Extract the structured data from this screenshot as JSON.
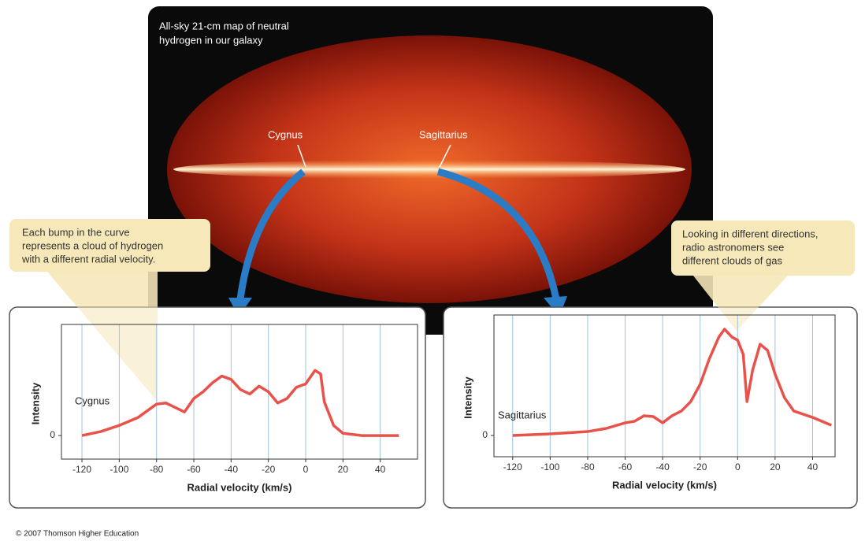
{
  "map": {
    "title_lines": [
      "All-sky 21-cm map of neutral",
      "hydrogen in our galaxy"
    ],
    "labels": [
      "Cygnus",
      "Sagittarius"
    ]
  },
  "callouts": [
    {
      "lines": [
        "Each bump in the curve",
        "represents a cloud of hydrogen",
        "with a different radial velocity."
      ]
    },
    {
      "lines": [
        "Looking in different directions,",
        "radio astronomers see",
        "different clouds of gas"
      ]
    }
  ],
  "chart_data": [
    {
      "type": "line",
      "x_label": "Radial velocity (km/s)",
      "y_label": "Intensity",
      "x": [
        -120,
        -110,
        -100,
        -90,
        -85,
        -80,
        -75,
        -70,
        -65,
        -60,
        -55,
        -50,
        -45,
        -40,
        -35,
        -30,
        -25,
        -20,
        -15,
        -10,
        -5,
        0,
        5,
        8,
        10,
        15,
        20,
        30,
        40,
        50
      ],
      "series": [
        {
          "name": "Cygnus",
          "color": "#e8524a",
          "values": [
            0,
            0.35,
            0.9,
            1.6,
            2.2,
            2.8,
            2.9,
            2.5,
            2.1,
            3.3,
            3.9,
            4.7,
            5.3,
            5.0,
            4.1,
            3.7,
            4.4,
            3.9,
            2.9,
            3.3,
            4.3,
            4.6,
            5.8,
            5.5,
            3.0,
            0.9,
            0.2,
            0,
            0,
            0
          ]
        }
      ],
      "xlim": [
        -131,
        60
      ],
      "xticks": [
        -120,
        -100,
        -80,
        -60,
        -40,
        -20,
        0,
        20,
        40
      ],
      "ylim": [
        -2.1,
        9.9
      ],
      "yticks": [
        0
      ],
      "grid": true
    },
    {
      "type": "line",
      "x_label": "Radial velocity (km/s)",
      "y_label": "Intensity",
      "x": [
        -120,
        -100,
        -80,
        -70,
        -60,
        -55,
        -50,
        -45,
        -40,
        -35,
        -30,
        -25,
        -20,
        -15,
        -10,
        -7,
        -3,
        0,
        3,
        5,
        8,
        12,
        16,
        20,
        25,
        30,
        40,
        50
      ],
      "series": [
        {
          "name": "Sagittarius",
          "color": "#e8524a",
          "values": [
            0,
            0.13,
            0.33,
            0.6,
            1.07,
            1.2,
            1.67,
            1.6,
            1.07,
            1.67,
            2.07,
            2.87,
            4.33,
            6.53,
            8.33,
            9.0,
            8.33,
            8.07,
            6.87,
            2.87,
            5.53,
            7.73,
            7.2,
            5.2,
            3.2,
            2.07,
            1.53,
            0.87
          ]
        }
      ],
      "xlim": [
        -130,
        52
      ],
      "xticks": [
        -120,
        -100,
        -80,
        -60,
        -40,
        -20,
        0,
        20,
        40
      ],
      "ylim": [
        -1.8,
        10.2
      ],
      "yticks": [
        0
      ],
      "grid": true
    }
  ],
  "credit": "© 2007 Thomson Higher Education"
}
